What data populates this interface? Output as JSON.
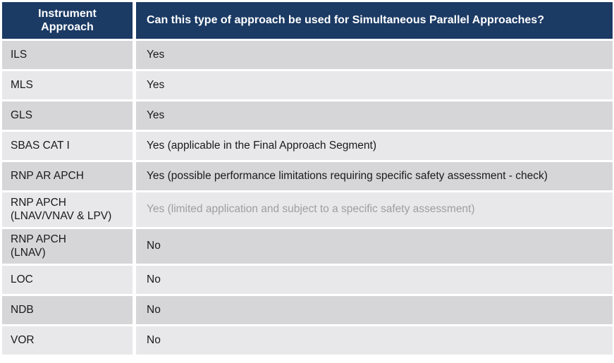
{
  "table": {
    "header": {
      "col1": "Instrument\nApproach",
      "col2": "Can this type of approach be used for Simultaneous Parallel Approaches?"
    },
    "rows": [
      {
        "approach": "ILS",
        "answer": "Yes",
        "muted": false
      },
      {
        "approach": "MLS",
        "answer": "Yes",
        "muted": false
      },
      {
        "approach": "GLS",
        "answer": "Yes",
        "muted": false
      },
      {
        "approach": "SBAS CAT I",
        "answer": "Yes (applicable in the Final Approach Segment)",
        "muted": false
      },
      {
        "approach": "RNP AR APCH",
        "answer": "Yes (possible performance limitations requiring specific safety assessment - check)",
        "muted": false
      },
      {
        "approach": "RNP APCH\n(LNAV/VNAV & LPV)",
        "answer": "Yes (limited application and subject to a specific safety assessment)",
        "muted": true
      },
      {
        "approach": "RNP APCH\n(LNAV)",
        "answer": "No",
        "muted": false
      },
      {
        "approach": "LOC",
        "answer": "No",
        "muted": false
      },
      {
        "approach": "NDB",
        "answer": "No",
        "muted": false
      },
      {
        "approach": "VOR",
        "answer": "No",
        "muted": false
      }
    ]
  },
  "colors": {
    "header_bg": "#1b3a64",
    "header_text": "#ffffff",
    "row_dark": "#d6d6d8",
    "row_light": "#e8e8ea",
    "body_text": "#1a1a1a",
    "muted_text": "#9e9e9e",
    "page_bg": "#ffffff"
  }
}
